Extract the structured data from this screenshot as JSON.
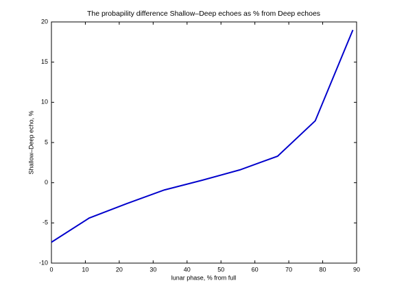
{
  "chart_data": {
    "type": "line",
    "title": "The probapility difference Shallow–Deep echoes as % from Deep echoes",
    "xlabel": "lunar phase, % from full",
    "ylabel": "Shallow–Deep echo, %",
    "x": [
      0,
      11.1,
      22.2,
      33.3,
      44.4,
      55.6,
      66.7,
      77.8,
      88.9
    ],
    "series": [
      {
        "color": "#0000cc",
        "values": [
          -7.4,
          -4.4,
          -2.6,
          -0.9,
          0.3,
          1.6,
          3.3,
          7.7,
          19.0
        ]
      }
    ],
    "xlim": [
      0,
      90
    ],
    "xticks": [
      0,
      10,
      20,
      30,
      40,
      50,
      60,
      70,
      80,
      90
    ],
    "ylim": [
      -10,
      20
    ],
    "yticks": [
      -10,
      -5,
      0,
      5,
      10,
      15,
      20
    ]
  }
}
